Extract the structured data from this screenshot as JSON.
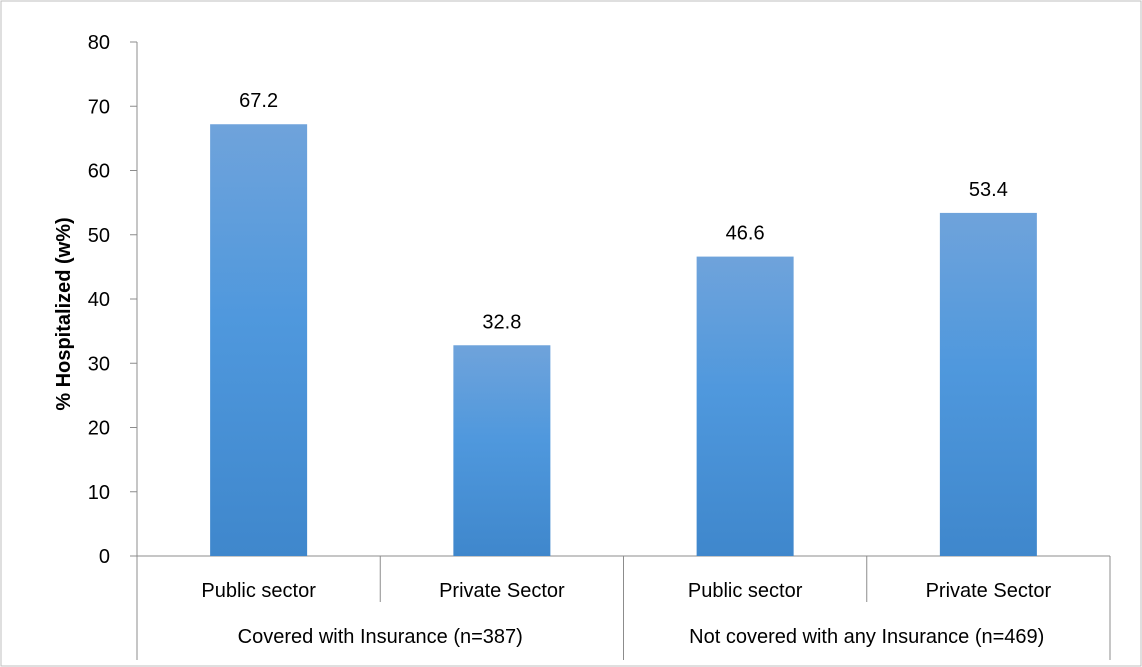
{
  "chart_data": {
    "type": "bar",
    "title": "",
    "xlabel": "",
    "ylabel": "% Hospitalized (w%)",
    "ylim": [
      0,
      80
    ],
    "yticks": [
      0,
      10,
      20,
      30,
      40,
      50,
      60,
      70,
      80
    ],
    "categories": [
      "Public sector",
      "Private Sector",
      "Public sector",
      "Private Sector"
    ],
    "groups": [
      {
        "label": "Covered with Insurance (n=387)",
        "categories": [
          0,
          1
        ]
      },
      {
        "label": "Not covered with any Insurance (n=469)",
        "categories": [
          2,
          3
        ]
      }
    ],
    "values": [
      67.2,
      32.8,
      46.6,
      53.4
    ],
    "data_labels": [
      "67.2",
      "32.8",
      "46.6",
      "53.4"
    ],
    "colors": {
      "bar_top": "#6fa3db",
      "bar_mid": "#4f98dd",
      "bar_bottom": "#3f87cc",
      "axis": "#8c8c8c",
      "frame": "#bfbfbf"
    },
    "grid": false,
    "legend": "none"
  }
}
